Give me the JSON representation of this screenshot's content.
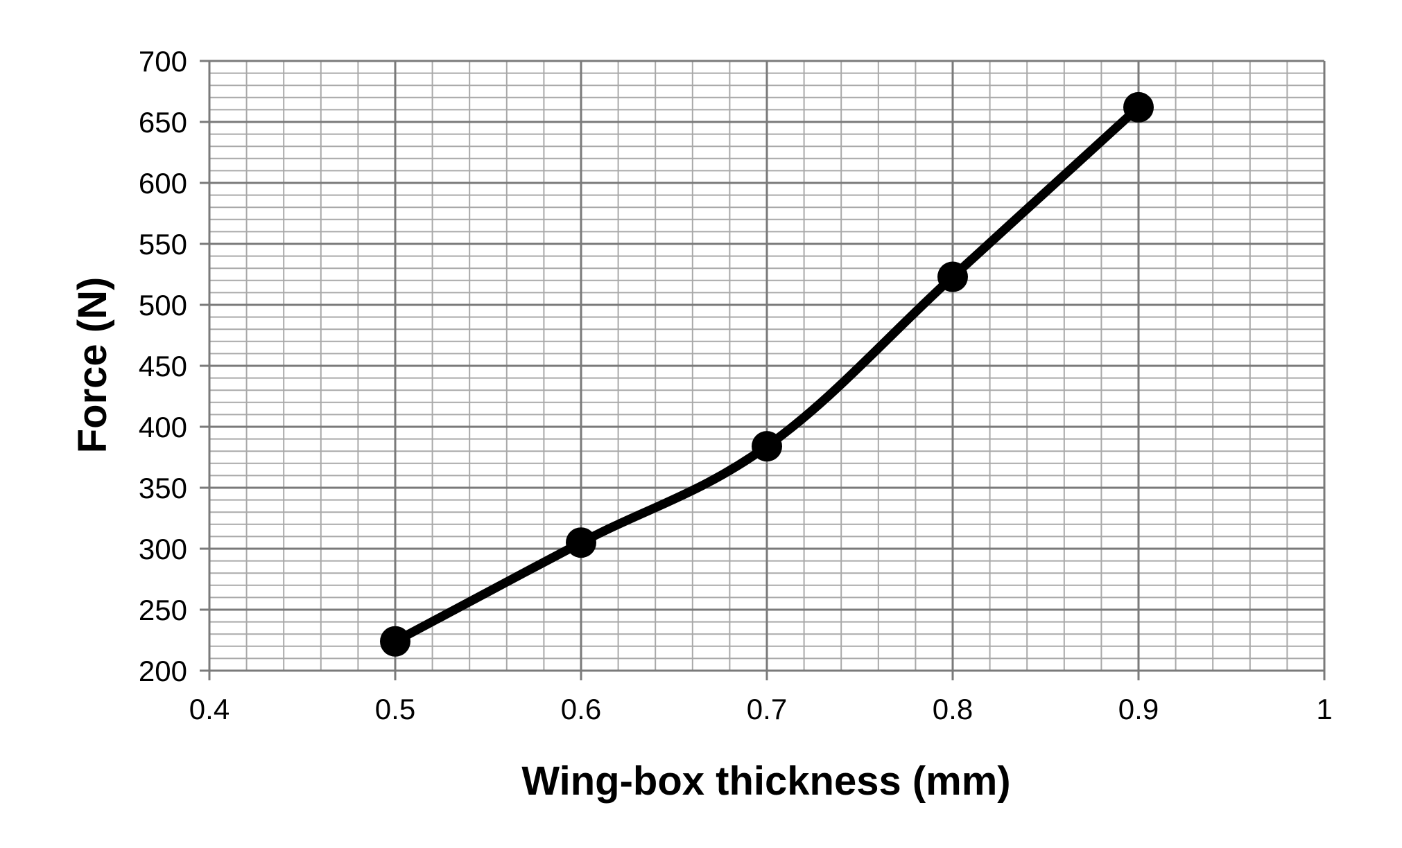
{
  "chart_data": {
    "type": "line",
    "title": "",
    "xlabel": "Wing-box thickness (mm)",
    "ylabel": "Force (N)",
    "xlim": [
      0.4,
      1
    ],
    "ylim": [
      200,
      700
    ],
    "x_ticks": [
      "0.4",
      "0.5",
      "0.6",
      "0.7",
      "0.8",
      "0.9",
      "1"
    ],
    "y_ticks": [
      "200",
      "250",
      "300",
      "350",
      "400",
      "450",
      "500",
      "550",
      "600",
      "650",
      "700"
    ],
    "grid": true,
    "legend": "none",
    "series": [
      {
        "x": [
          0.5,
          0.6,
          0.7,
          0.8,
          0.9
        ],
        "y": [
          224,
          305,
          384,
          523,
          662
        ],
        "color": "#000000",
        "marker": "circle",
        "smooth": true
      }
    ]
  }
}
